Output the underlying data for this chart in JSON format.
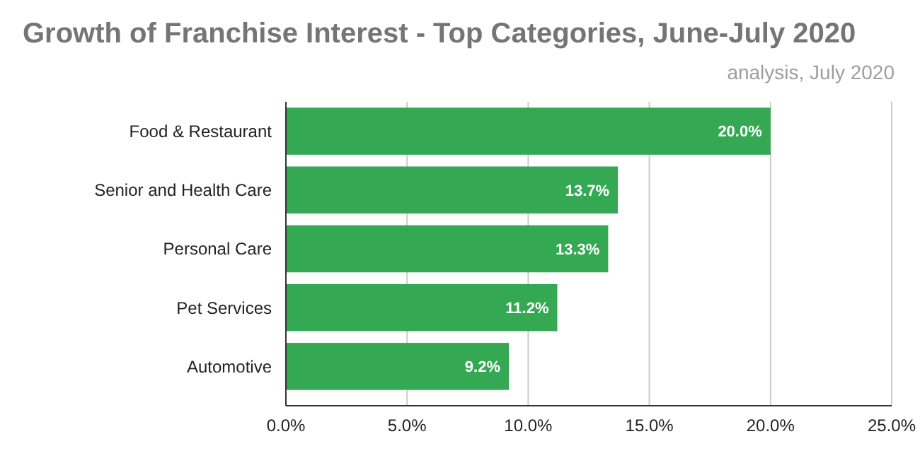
{
  "chart_data": {
    "type": "bar",
    "orientation": "horizontal",
    "title": "Growth of Franchise Interest - Top Categories, June-July 2020",
    "subtitle": "analysis, July 2020",
    "categories": [
      "Food & Restaurant",
      "Senior and Health Care",
      "Personal Care",
      "Pet Services",
      "Automotive"
    ],
    "values": [
      20.0,
      13.7,
      13.3,
      11.2,
      9.2
    ],
    "value_labels": [
      "20.0%",
      "13.7%",
      "13.3%",
      "11.2%",
      "9.2%"
    ],
    "color": "#34a853",
    "xlim": [
      0,
      25
    ],
    "xticks": [
      {
        "value": 0,
        "label": "0.0%"
      },
      {
        "value": 5,
        "label": "5.0%"
      },
      {
        "value": 10,
        "label": "10.0%"
      },
      {
        "value": 15,
        "label": "15.0%"
      },
      {
        "value": 20,
        "label": "20.0%"
      },
      {
        "value": 25,
        "label": "25.0%"
      }
    ],
    "grid": "x"
  }
}
